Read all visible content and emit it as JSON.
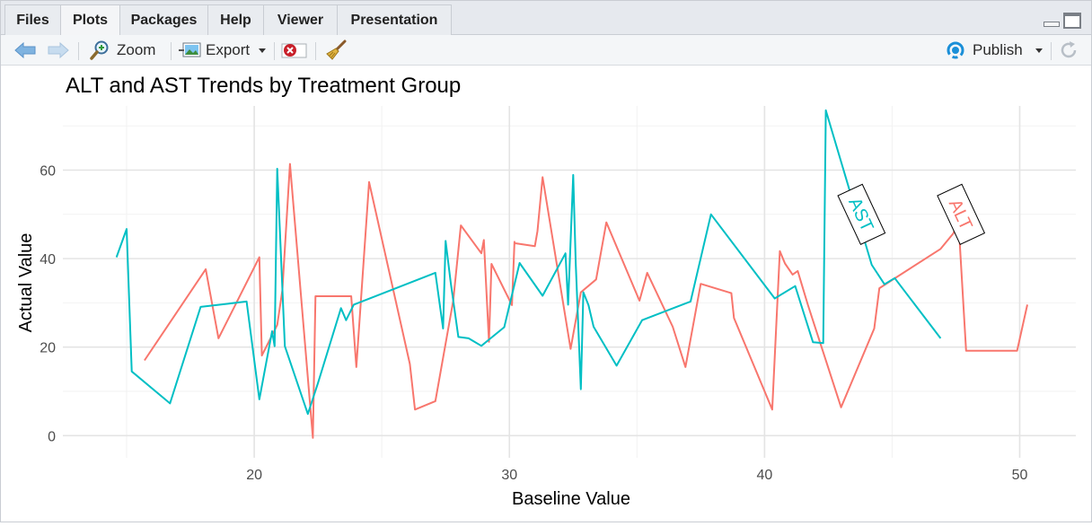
{
  "tabs": [
    {
      "label": "Files",
      "active": false
    },
    {
      "label": "Plots",
      "active": true
    },
    {
      "label": "Packages",
      "active": false
    },
    {
      "label": "Help",
      "active": false
    },
    {
      "label": "Viewer",
      "active": false
    },
    {
      "label": "Presentation",
      "active": false
    }
  ],
  "toolbar": {
    "zoom_label": "Zoom",
    "export_label": "Export",
    "publish_label": "Publish"
  },
  "colors": {
    "accent_publish": "#1a8fd8",
    "alt_series": "#F8766D",
    "ast_series": "#00BFC4"
  },
  "icons": [
    "back-arrow-icon",
    "forward-arrow-icon",
    "zoom-icon",
    "export-icon",
    "remove-plot-icon",
    "broom-icon",
    "publish-icon",
    "refresh-icon",
    "minimize-icon",
    "maximize-icon"
  ],
  "chart_data": {
    "type": "line",
    "title": "ALT and AST Trends by Treatment Group",
    "xlabel": "Baseline Value",
    "ylabel": "Actual Value",
    "xlim": [
      12.5,
      52.2
    ],
    "ylim": [
      -5,
      74.5
    ],
    "xticks": [
      20,
      30,
      40,
      50
    ],
    "yticks": [
      0,
      20,
      40,
      60
    ],
    "grid": true,
    "legend": "none",
    "series": [
      {
        "name": "ALT",
        "color": "#F8766D",
        "label_at": [
          47.7,
          50
        ],
        "x": [
          15.7,
          18.1,
          18.6,
          20.2,
          20.3,
          20.9,
          21.1,
          21.4,
          22.3,
          22.4,
          23.8,
          24.0,
          24.5,
          26.1,
          26.3,
          27.1,
          27.8,
          28.1,
          28.9,
          29.0,
          29.2,
          29.3,
          30.1,
          30.2,
          30.2,
          31.0,
          31.1,
          31.3,
          32.4,
          32.8,
          33.4,
          33.8,
          35.1,
          35.4,
          36.4,
          36.9,
          37.5,
          38.7,
          38.8,
          40.3,
          40.6,
          40.8,
          41.1,
          41.3,
          41.7,
          43.0,
          44.3,
          44.5,
          46.9,
          47.4,
          47.6,
          47.9,
          49.2,
          49.4,
          49.9,
          50.3
        ],
        "y": [
          17,
          37.6,
          22,
          40.3,
          18.1,
          25,
          32.8,
          61.4,
          -0.5,
          31.5,
          31.5,
          15.5,
          57.3,
          16.2,
          5.9,
          7.8,
          30.5,
          47.5,
          41.2,
          44.2,
          21.2,
          38.8,
          29.5,
          43.8,
          43.5,
          42.8,
          46.2,
          58.4,
          19.6,
          32.4,
          35.3,
          48.2,
          30.5,
          36.8,
          24.6,
          15.5,
          34.3,
          32.2,
          26.6,
          5.9,
          41.7,
          38.9,
          36.4,
          37.2,
          29.5,
          6.4,
          24.2,
          33.3,
          42.2,
          45.7,
          48.5,
          19.2,
          19.2,
          19.2,
          19.2,
          29.6
        ]
      },
      {
        "name": "AST",
        "color": "#00BFC4",
        "label_at": [
          43.8,
          50
        ],
        "x": [
          14.6,
          15.0,
          15.2,
          16.7,
          17.9,
          19.7,
          20.2,
          20.7,
          20.8,
          20.9,
          21.2,
          22.1,
          22.5,
          23.4,
          23.6,
          23.9,
          27.1,
          27.4,
          27.5,
          27.7,
          28.0,
          28.4,
          28.9,
          29.8,
          30.4,
          31.3,
          32.2,
          32.3,
          32.5,
          32.6,
          32.8,
          32.9,
          33.1,
          33.3,
          34.2,
          35.2,
          37.1,
          37.9,
          40.4,
          41.2,
          41.9,
          42.3,
          42.4,
          44.2,
          44.7,
          45.1,
          46.9
        ],
        "y": [
          40.3,
          46.7,
          14.5,
          7.3,
          29.1,
          30.3,
          8.2,
          23.6,
          20.2,
          60.3,
          20.2,
          4.9,
          11.9,
          28.8,
          26.1,
          29.6,
          36.8,
          24.2,
          44,
          34.6,
          22.3,
          22,
          20.3,
          24.5,
          39,
          31.6,
          41.2,
          29.6,
          58.9,
          39,
          10.5,
          32.4,
          29.5,
          24.6,
          15.8,
          26.1,
          30.3,
          50,
          31,
          33.8,
          21.1,
          20.9,
          73.5,
          38.6,
          34.2,
          35.6,
          22
        ]
      }
    ]
  }
}
